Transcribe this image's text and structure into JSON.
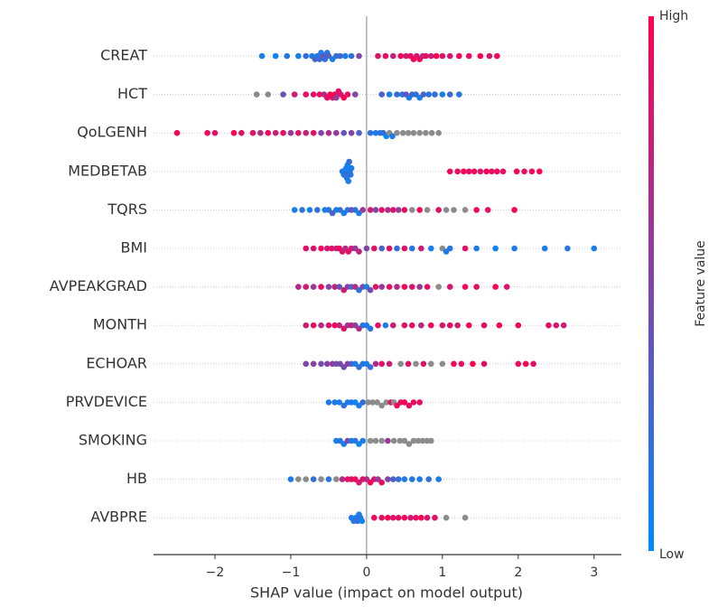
{
  "chart_data": {
    "type": "beeswarm",
    "xlabel": "SHAP value (impact on model output)",
    "colorbar_label": "Feature value",
    "colorbar_high": "High",
    "colorbar_low": "Low",
    "colormap": [
      "#008bfb",
      "#ff0052"
    ],
    "missing_color": "#8c8c8c",
    "xlim": [
      -2.81,
      3.36
    ],
    "xticks": [
      {
        "value": -2,
        "label": "−2"
      },
      {
        "value": -1,
        "label": "−1"
      },
      0,
      1,
      2,
      3
    ],
    "series": [
      {
        "name": "CREAT",
        "values": [
          -1.38,
          -1.2,
          -1.05,
          -0.9,
          -0.8,
          -0.72,
          -0.68,
          -0.65,
          -0.62,
          -0.6,
          -0.57,
          -0.55,
          -0.52,
          -0.5,
          -0.45,
          -0.4,
          -0.35,
          -0.28,
          -0.2,
          -0.1,
          0.15,
          0.25,
          0.35,
          0.45,
          0.52,
          0.58,
          0.62,
          0.66,
          0.7,
          0.74,
          0.78,
          0.85,
          0.92,
          1.0,
          1.1,
          1.22,
          1.35,
          1.5,
          1.62,
          1.72
        ],
        "feature_values": [
          0.1,
          0.05,
          0.15,
          0.1,
          0.2,
          0.1,
          0.3,
          0.15,
          0.25,
          0.1,
          0.4,
          0.2,
          0.15,
          0.3,
          0.1,
          0.2,
          0.25,
          0.1,
          0.2,
          0.5,
          0.85,
          0.9,
          0.75,
          0.95,
          0.8,
          0.9,
          1,
          0.85,
          0.95,
          0.7,
          0.9,
          0.8,
          1,
          0.9,
          0.85,
          0.95,
          0.9,
          1,
          0.85,
          0.95
        ]
      },
      {
        "name": "HCT",
        "values": [
          -1.45,
          -1.3,
          -1.1,
          -0.95,
          -0.8,
          -0.7,
          -0.62,
          -0.56,
          -0.52,
          -0.48,
          -0.45,
          -0.42,
          -0.4,
          -0.37,
          -0.34,
          -0.3,
          -0.25,
          -0.15,
          0.2,
          0.3,
          0.4,
          0.47,
          0.52,
          0.56,
          0.6,
          0.65,
          0.7,
          0.75,
          0.82,
          0.9,
          1.0,
          1.1,
          1.22
        ],
        "feature_values": [
          null,
          null,
          0.4,
          0.8,
          0.9,
          0.85,
          0.95,
          0.7,
          0.9,
          1,
          0.85,
          0.95,
          0.6,
          0.9,
          0.8,
          1,
          0.9,
          0.5,
          0.3,
          0.1,
          0.2,
          0.15,
          0.4,
          0.1,
          0.25,
          0.2,
          0.1,
          0.3,
          0.15,
          0.2,
          0.1,
          0.25,
          0.15
        ]
      },
      {
        "name": "QoLGENH",
        "values": [
          -2.5,
          -2.1,
          -2.0,
          -1.75,
          -1.65,
          -1.5,
          -1.4,
          -1.3,
          -1.2,
          -1.1,
          -1.0,
          -0.9,
          -0.8,
          -0.7,
          -0.6,
          -0.5,
          -0.4,
          -0.3,
          -0.2,
          -0.1,
          0.05,
          0.12,
          0.18,
          0.22,
          0.26,
          0.3,
          0.34,
          0.4,
          0.48,
          0.55,
          0.62,
          0.7,
          0.78,
          0.86,
          0.95
        ],
        "feature_values": [
          1,
          0.95,
          0.9,
          1,
          0.85,
          0.9,
          0.7,
          0.95,
          0.8,
          0.9,
          0.6,
          0.85,
          0.75,
          0.9,
          0.5,
          0.7,
          0.6,
          0.4,
          0.5,
          0.3,
          0.2,
          0.1,
          0.15,
          0.2,
          0.05,
          null,
          0.1,
          null,
          null,
          null,
          null,
          null,
          null,
          null,
          null
        ]
      },
      {
        "name": "MEDBETAB",
        "values": [
          -0.32,
          -0.3,
          -0.29,
          -0.28,
          -0.27,
          -0.26,
          -0.25,
          -0.24,
          -0.23,
          -0.22,
          -0.21,
          -0.2,
          1.1,
          1.2,
          1.28,
          1.35,
          1.42,
          1.5,
          1.58,
          1.65,
          1.72,
          1.8,
          1.98,
          2.08,
          2.18,
          2.28
        ],
        "feature_values": [
          0.1,
          0.15,
          0.1,
          0.2,
          0.1,
          0.15,
          0.05,
          0.1,
          0.2,
          0.1,
          0.15,
          0.1,
          0.95,
          0.9,
          1,
          0.9,
          0.95,
          0.85,
          1,
          0.9,
          0.95,
          0.9,
          1,
          0.9,
          0.95,
          1
        ]
      },
      {
        "name": "TQRS",
        "values": [
          -0.95,
          -0.85,
          -0.75,
          -0.65,
          -0.55,
          -0.5,
          -0.45,
          -0.4,
          -0.35,
          -0.3,
          -0.25,
          -0.2,
          -0.15,
          -0.1,
          -0.05,
          0.05,
          0.12,
          0.2,
          0.28,
          0.35,
          0.42,
          0.5,
          0.6,
          0.7,
          0.8,
          0.95,
          1.05,
          1.15,
          1.3,
          1.45,
          1.6,
          1.95
        ],
        "feature_values": [
          0.1,
          0.15,
          0.1,
          0.2,
          0.1,
          0.15,
          0.3,
          0.1,
          0.2,
          0.1,
          0.15,
          0.4,
          0.2,
          0.1,
          0.6,
          0.8,
          0.5,
          0.9,
          0.7,
          0.85,
          0.6,
          0.9,
          null,
          0.95,
          null,
          0.9,
          null,
          null,
          null,
          0.95,
          0.9,
          1
        ]
      },
      {
        "name": "BMI",
        "values": [
          -0.8,
          -0.7,
          -0.6,
          -0.52,
          -0.46,
          -0.4,
          -0.36,
          -0.32,
          -0.28,
          -0.24,
          -0.2,
          -0.15,
          -0.1,
          0.0,
          0.1,
          0.2,
          0.3,
          0.4,
          0.5,
          0.6,
          0.72,
          0.85,
          1.0,
          1.05,
          1.1,
          1.3,
          1.45,
          1.7,
          1.95,
          2.35,
          2.65,
          3.0
        ],
        "feature_values": [
          0.9,
          0.85,
          0.95,
          0.8,
          0.9,
          0.75,
          0.95,
          0.85,
          0.7,
          0.9,
          0.8,
          0.6,
          0.75,
          0.5,
          0.9,
          0.3,
          0.85,
          0.2,
          0.9,
          0.15,
          0.8,
          0.1,
          null,
          0.1,
          0.15,
          0.9,
          0.1,
          0.05,
          0.1,
          0.1,
          0.15,
          0.1
        ]
      },
      {
        "name": "AVPEAKGRAD",
        "values": [
          -0.9,
          -0.8,
          -0.7,
          -0.6,
          -0.5,
          -0.42,
          -0.36,
          -0.3,
          -0.25,
          -0.2,
          -0.15,
          -0.1,
          -0.05,
          0.0,
          0.05,
          0.12,
          0.2,
          0.3,
          0.4,
          0.5,
          0.6,
          0.7,
          0.8,
          0.95,
          1.1,
          1.3,
          1.45,
          1.7,
          1.85
        ],
        "feature_values": [
          0.7,
          0.8,
          0.6,
          0.9,
          0.5,
          0.75,
          0.4,
          0.8,
          0.55,
          0.3,
          0.7,
          0.2,
          0.5,
          0.1,
          0.45,
          0.85,
          0.6,
          0.9,
          0.7,
          0.95,
          0.85,
          0.6,
          0.9,
          null,
          0.85,
          0.95,
          0.9,
          1,
          0.85
        ]
      },
      {
        "name": "MONTH",
        "values": [
          -0.8,
          -0.7,
          -0.6,
          -0.5,
          -0.42,
          -0.36,
          -0.3,
          -0.25,
          -0.2,
          -0.15,
          -0.1,
          -0.05,
          0.0,
          0.05,
          0.15,
          0.25,
          0.35,
          0.5,
          0.6,
          0.72,
          0.85,
          1.0,
          1.1,
          1.2,
          1.35,
          1.55,
          1.75,
          2.0,
          2.4,
          2.5,
          2.6
        ],
        "feature_values": [
          0.8,
          0.9,
          0.7,
          0.85,
          0.95,
          0.75,
          0.9,
          0.6,
          0.8,
          0.5,
          0.7,
          0.2,
          0.1,
          0.15,
          0.9,
          0.1,
          0.8,
          0.85,
          0.9,
          0.7,
          0.95,
          0.85,
          0.9,
          0.8,
          0.95,
          0.9,
          1,
          0.95,
          0.9,
          0.85,
          0.8
        ]
      },
      {
        "name": "ECHOAR",
        "values": [
          -0.8,
          -0.7,
          -0.6,
          -0.52,
          -0.45,
          -0.4,
          -0.35,
          -0.3,
          -0.25,
          -0.2,
          -0.15,
          -0.1,
          -0.05,
          0.0,
          0.05,
          0.12,
          0.2,
          0.3,
          0.45,
          0.55,
          0.65,
          0.75,
          0.85,
          1.0,
          1.15,
          1.25,
          1.4,
          1.55,
          2.0,
          2.1,
          2.2
        ],
        "feature_values": [
          0.5,
          0.55,
          0.45,
          0.5,
          0.6,
          0.4,
          0.5,
          0.45,
          0.55,
          0.3,
          0.1,
          0.2,
          0.15,
          0.1,
          0.2,
          0.7,
          0.9,
          0.8,
          null,
          0.9,
          null,
          0.85,
          null,
          null,
          0.95,
          0.9,
          1,
          0.9,
          0.95,
          1,
          0.9
        ]
      },
      {
        "name": "PRVDEVICE",
        "values": [
          -0.5,
          -0.42,
          -0.36,
          -0.3,
          -0.25,
          -0.2,
          -0.15,
          -0.1,
          -0.05,
          0.02,
          0.08,
          0.14,
          0.2,
          0.26,
          0.32,
          0.36,
          0.4,
          0.45,
          0.5,
          0.56,
          0.62,
          0.7
        ],
        "feature_values": [
          0.1,
          0.15,
          0.1,
          0.2,
          0.1,
          0.15,
          0.05,
          0.1,
          0.2,
          null,
          null,
          null,
          null,
          null,
          0.9,
          null,
          0.95,
          0.85,
          1,
          0.9,
          0.95,
          0.9
        ]
      },
      {
        "name": "SMOKING",
        "values": [
          -0.4,
          -0.35,
          -0.3,
          -0.25,
          -0.2,
          -0.15,
          -0.1,
          -0.05,
          0.05,
          0.12,
          0.2,
          0.28,
          0.36,
          0.44,
          0.5,
          0.56,
          0.62,
          0.68,
          0.74,
          0.8,
          0.85
        ],
        "feature_values": [
          0.1,
          0.15,
          0.1,
          0.5,
          0.1,
          0.15,
          0.05,
          0.1,
          null,
          null,
          null,
          0.6,
          null,
          null,
          null,
          null,
          null,
          null,
          null,
          null,
          null
        ]
      },
      {
        "name": "HB",
        "values": [
          -1.0,
          -0.9,
          -0.8,
          -0.7,
          -0.6,
          -0.5,
          -0.4,
          -0.32,
          -0.25,
          -0.2,
          -0.15,
          -0.1,
          -0.05,
          0.0,
          0.05,
          0.1,
          0.15,
          0.2,
          0.28,
          0.35,
          0.42,
          0.5,
          0.6,
          0.7,
          0.82,
          0.95
        ],
        "feature_values": [
          0.1,
          null,
          null,
          0.2,
          null,
          0.15,
          null,
          0.7,
          0.9,
          0.85,
          0.95,
          0.8,
          0.9,
          0.7,
          0.95,
          0.85,
          0.6,
          0.9,
          0.5,
          0.3,
          0.2,
          0.1,
          0.15,
          0.1,
          0.2,
          0.1
        ]
      },
      {
        "name": "AVBPRE",
        "values": [
          -0.2,
          -0.17,
          -0.14,
          -0.12,
          -0.1,
          -0.08,
          -0.06,
          0.1,
          0.2,
          0.28,
          0.35,
          0.42,
          0.5,
          0.58,
          0.65,
          0.72,
          0.8,
          0.9,
          1.05,
          1.3
        ],
        "feature_values": [
          0.1,
          0.15,
          0.1,
          0.2,
          0.1,
          0.15,
          0.05,
          0.95,
          0.9,
          1,
          0.85,
          0.9,
          0.95,
          0.8,
          0.9,
          1,
          0.85,
          0.9,
          null,
          null
        ]
      }
    ]
  }
}
